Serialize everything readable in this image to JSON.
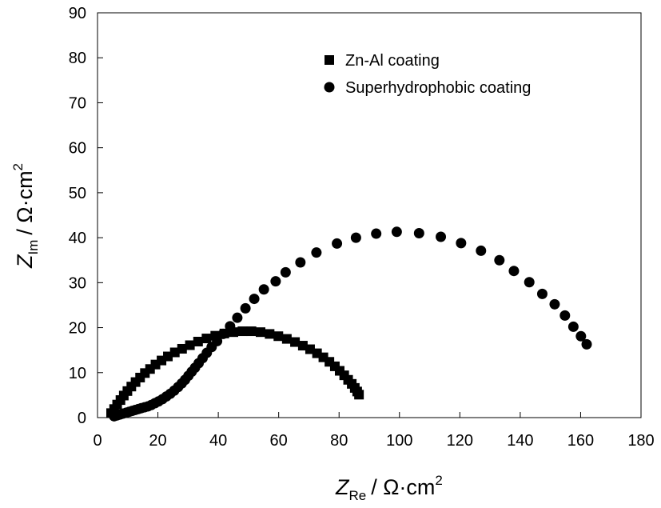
{
  "chart_data": {
    "type": "scatter",
    "title": "",
    "xlabel": {
      "symbol": "Z",
      "subscript": "Re",
      "unit": "/ Ω·cm",
      "superscript": "2"
    },
    "ylabel": {
      "symbol": "Z",
      "subscript": "Im",
      "unit": "/ Ω·cm",
      "superscript": "2"
    },
    "xlim": [
      0,
      180
    ],
    "ylim": [
      0,
      90
    ],
    "xticks": [
      0,
      20,
      40,
      60,
      80,
      100,
      120,
      140,
      160,
      180
    ],
    "yticks": [
      0,
      10,
      20,
      30,
      40,
      50,
      60,
      70,
      80,
      90
    ],
    "grid": false,
    "legend_position": "top-right",
    "series": [
      {
        "name": "Zn-Al coating",
        "marker": "square",
        "color": "#000000",
        "x": [
          4.5,
          5.5,
          6.5,
          7.6,
          8.7,
          9.9,
          11.2,
          12.6,
          14.1,
          15.7,
          17.4,
          19.2,
          21.2,
          23.3,
          25.6,
          28.0,
          30.6,
          33.3,
          36.1,
          39.0,
          42.0,
          45.0,
          48.0,
          51.0,
          54.0,
          57.0,
          59.9,
          62.7,
          65.4,
          68.0,
          70.4,
          72.7,
          74.8,
          76.8,
          78.6,
          80.2,
          81.7,
          83.0,
          84.2,
          85.2,
          86.0,
          86.6
        ],
        "y": [
          1.0,
          1.9,
          2.9,
          3.9,
          4.9,
          5.9,
          6.9,
          7.9,
          8.9,
          9.9,
          10.8,
          11.8,
          12.7,
          13.6,
          14.5,
          15.3,
          16.1,
          16.9,
          17.6,
          18.2,
          18.7,
          19.0,
          19.2,
          19.2,
          19.0,
          18.6,
          18.1,
          17.5,
          16.8,
          16.0,
          15.2,
          14.3,
          13.4,
          12.4,
          11.4,
          10.4,
          9.4,
          8.4,
          7.5,
          6.6,
          5.8,
          5.1
        ]
      },
      {
        "name": "Superhydrophobic coating",
        "marker": "circle",
        "color": "#000000",
        "x": [
          5.5,
          6.5,
          7.5,
          8.5,
          9.5,
          10.5,
          11.5,
          12.5,
          13.5,
          14.5,
          15.6,
          16.7,
          17.8,
          19.0,
          20.2,
          21.5,
          22.8,
          24.1,
          25.4,
          26.7,
          27.9,
          29.0,
          30.1,
          31.2,
          32.3,
          33.5,
          34.8,
          36.2,
          37.8,
          39.6,
          41.6,
          43.9,
          46.3,
          49.0,
          51.9,
          55.1,
          59.0,
          62.3,
          67.2,
          72.5,
          79.3,
          85.6,
          92.3,
          99.1,
          106.5,
          113.7,
          120.4,
          127.0,
          133.1,
          137.9,
          143.0,
          147.3,
          151.4,
          154.8,
          157.6,
          160.1,
          162.0
        ],
        "y": [
          0.3,
          0.5,
          0.7,
          0.9,
          1.1,
          1.3,
          1.5,
          1.7,
          1.9,
          2.1,
          2.3,
          2.5,
          2.8,
          3.2,
          3.6,
          4.1,
          4.7,
          5.3,
          6.0,
          6.8,
          7.6,
          8.4,
          9.3,
          10.2,
          11.1,
          12.1,
          13.2,
          14.4,
          15.7,
          17.0,
          18.6,
          20.3,
          22.2,
          24.3,
          26.4,
          28.5,
          30.3,
          32.3,
          34.5,
          36.7,
          38.7,
          40.0,
          40.9,
          41.3,
          41.0,
          40.2,
          38.8,
          37.1,
          35.0,
          32.6,
          30.1,
          27.5,
          25.2,
          22.7,
          20.2,
          18.1,
          16.3
        ]
      }
    ]
  }
}
